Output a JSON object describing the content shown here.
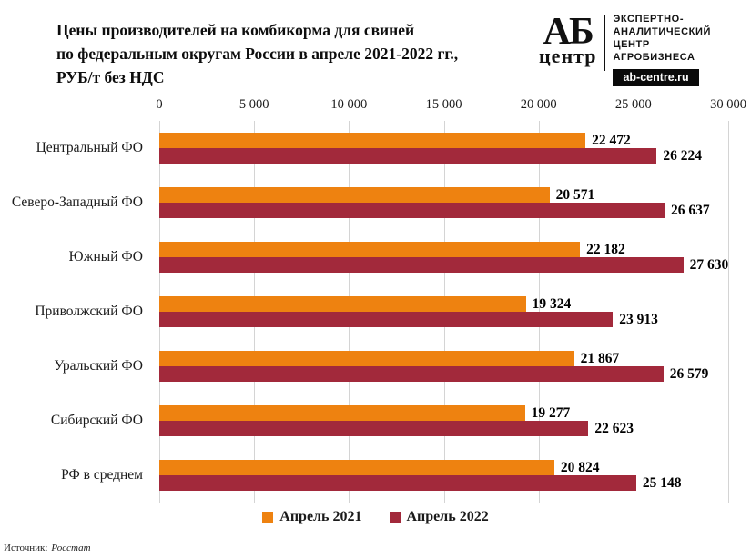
{
  "header": {
    "title_lines": [
      "Цены производителей  на комбикорма для свиней",
      "по федеральным округам России в апреле 2021-2022 гг.,",
      "РУБ/т без НДС"
    ],
    "logo": {
      "monogram": "АБ",
      "monogram_sub": "центр",
      "org_lines": [
        "ЭКСПЕРТНО-",
        "АНАЛИТИЧЕСКИЙ",
        "ЦЕНТР",
        "АГРОБИЗНЕСА"
      ],
      "site": "ab-centre.ru"
    }
  },
  "chart_data": {
    "type": "bar",
    "orientation": "horizontal",
    "title": "Цены производителей на комбикорма для свиней по федеральным округам России в апреле 2021-2022 гг., РУБ/т без НДС",
    "categories": [
      "Центральный ФО",
      "Северо-Западный ФО",
      "Южный ФО",
      "Приволжский ФО",
      "Уральский ФО",
      "Сибирский ФО",
      "РФ в среднем"
    ],
    "series": [
      {
        "name": "Апрель 2021",
        "color": "#EE8210",
        "values": [
          22472,
          20571,
          22182,
          19324,
          21867,
          19277,
          20824
        ]
      },
      {
        "name": "Апрель 2022",
        "color": "#A2293B",
        "values": [
          26224,
          26637,
          27630,
          23913,
          26579,
          22623,
          25148
        ]
      }
    ],
    "xlim": [
      0,
      30000
    ],
    "x_tick_labels": [
      "0",
      "5 000",
      "10 000",
      "15 000",
      "20 000",
      "25 000",
      "30 000"
    ],
    "value_labels": true,
    "grid": "vertical",
    "gridline_color": "#d4d4d4",
    "legend_position": "bottom"
  },
  "footer": {
    "source_label": "Источник:",
    "source_value": "Росстат"
  }
}
